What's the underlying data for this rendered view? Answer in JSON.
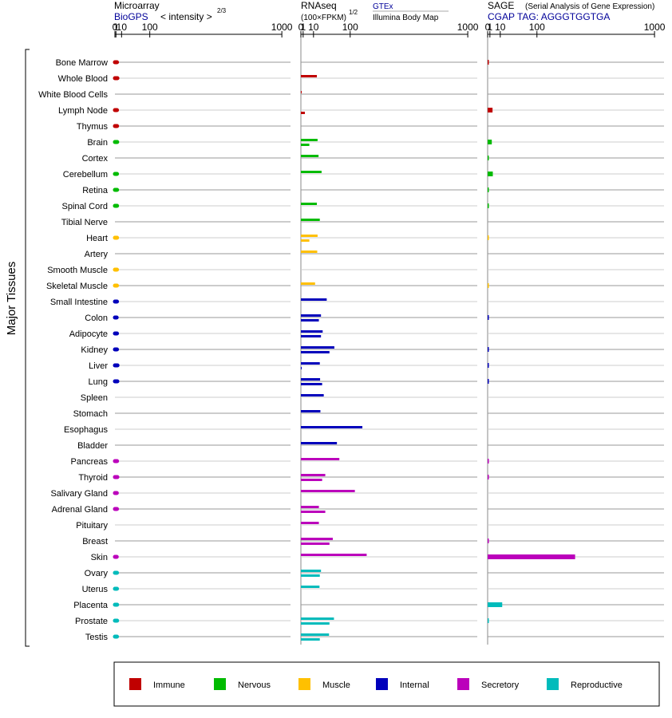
{
  "chart_data": {
    "type": "bar",
    "orientation": "horizontal",
    "axis_label": "Major Tissues",
    "tick_labels": [
      "0",
      "1",
      "10",
      "100",
      "1000"
    ],
    "tick_values": [
      0,
      1,
      10,
      100,
      1000
    ],
    "scale": "power 2/3 (microarray), power 1/2 (RNAseq, SAGE)",
    "panels": [
      {
        "title": "Microarray",
        "subtitle_link": "BioGPS",
        "subtitle_rest": "< intensity >",
        "exponent": "2/3",
        "range": [
          0,
          1000
        ]
      },
      {
        "title": "RNAseq",
        "subtitle_rest": "(100×FPKM)",
        "exponent": "1/2",
        "source_1": "GTEx",
        "source_2": "Illumina Body Map",
        "range": [
          0,
          1000
        ]
      },
      {
        "title": "SAGE",
        "title_note": "(Serial Analysis of Gene Expression)",
        "subtitle_link": "CGAP TAG: AGGGTGGTGA",
        "range": [
          0,
          1000
        ]
      }
    ],
    "categories": [
      "Immune",
      "Nervous",
      "Muscle",
      "Internal",
      "Secretory",
      "Reproductive"
    ],
    "category_colors": {
      "Immune": "#c00000",
      "Nervous": "#00bb00",
      "Muscle": "#ffc000",
      "Internal": "#0000bb",
      "Secretory": "#bb00bb",
      "Reproductive": "#00bbbb"
    },
    "tissues": [
      {
        "name": "Bone Marrow",
        "category": "Immune",
        "microarray": 2.3,
        "gtex": null,
        "ibm": null,
        "sage": 0.01
      },
      {
        "name": "Whole Blood",
        "category": "Immune",
        "microarray": 2.9,
        "gtex": 14.5,
        "ibm": null,
        "sage": null
      },
      {
        "name": "White Blood Cells",
        "category": "Immune",
        "microarray": null,
        "gtex": 0.02,
        "ibm": null,
        "sage": null
      },
      {
        "name": "Lymph Node",
        "category": "Immune",
        "microarray": 2.3,
        "gtex": null,
        "ibm": 2.0,
        "sage": 2.6
      },
      {
        "name": "Thymus",
        "category": "Immune",
        "microarray": 2.4,
        "gtex": null,
        "ibm": null,
        "sage": null
      },
      {
        "name": "Brain",
        "category": "Nervous",
        "microarray": 2.6,
        "gtex": 15.5,
        "ibm": 5.5,
        "sage": 2.1
      },
      {
        "name": "Cortex",
        "category": "Nervous",
        "microarray": null,
        "gtex": 17.0,
        "ibm": null,
        "sage": 0.01
      },
      {
        "name": "Cerebellum",
        "category": "Nervous",
        "microarray": 2.3,
        "gtex": 22.0,
        "ibm": null,
        "sage": 2.8
      },
      {
        "name": "Retina",
        "category": "Nervous",
        "microarray": 2.4,
        "gtex": null,
        "ibm": null,
        "sage": 0.01
      },
      {
        "name": "Spinal Cord",
        "category": "Nervous",
        "microarray": 2.4,
        "gtex": 14.5,
        "ibm": null,
        "sage": 0.01
      },
      {
        "name": "Tibial Nerve",
        "category": "Nervous",
        "microarray": null,
        "gtex": 19.0,
        "ibm": null,
        "sage": null
      },
      {
        "name": "Heart",
        "category": "Muscle",
        "microarray": 2.4,
        "gtex": 15.5,
        "ibm": 5.5,
        "sage": 0.005
      },
      {
        "name": "Artery",
        "category": "Muscle",
        "microarray": null,
        "gtex": 15.0,
        "ibm": null,
        "sage": null
      },
      {
        "name": "Smooth Muscle",
        "category": "Muscle",
        "microarray": 2.3,
        "gtex": null,
        "ibm": null,
        "sage": null
      },
      {
        "name": "Skeletal Muscle",
        "category": "Muscle",
        "microarray": 2.3,
        "gtex": 12.0,
        "ibm": null,
        "sage": 0.005
      },
      {
        "name": "Small Intestine",
        "category": "Internal",
        "microarray": 2.3,
        "gtex": 32.0,
        "ibm": null,
        "sage": null
      },
      {
        "name": "Colon",
        "category": "Internal",
        "microarray": 1.9,
        "gtex": 21.0,
        "ibm": 17.5,
        "sage": 0.01
      },
      {
        "name": "Adipocyte",
        "category": "Internal",
        "microarray": 2.3,
        "gtex": 24.0,
        "ibm": 21.0,
        "sage": null
      },
      {
        "name": "Kidney",
        "category": "Internal",
        "microarray": 2.3,
        "gtex": 50.0,
        "ibm": 38.0,
        "sage": 0.01
      },
      {
        "name": "Liver",
        "category": "Internal",
        "microarray": 3.0,
        "gtex": 19.0,
        "ibm": 0.02,
        "sage": 0.01
      },
      {
        "name": "Lung",
        "category": "Internal",
        "microarray": 2.8,
        "gtex": 19.5,
        "ibm": 23.0,
        "sage": 0.01
      },
      {
        "name": "Spleen",
        "category": "Internal",
        "microarray": null,
        "gtex": 26.0,
        "ibm": null,
        "sage": null
      },
      {
        "name": "Stomach",
        "category": "Internal",
        "microarray": null,
        "gtex": 20.0,
        "ibm": null,
        "sage": null
      },
      {
        "name": "Esophagus",
        "category": "Internal",
        "microarray": null,
        "gtex": 150.0,
        "ibm": null,
        "sage": null
      },
      {
        "name": "Bladder",
        "category": "Internal",
        "microarray": null,
        "gtex": 57.0,
        "ibm": null,
        "sage": null
      },
      {
        "name": "Pancreas",
        "category": "Secretory",
        "microarray": 2.4,
        "gtex": 64.0,
        "ibm": null,
        "sage": 0.01
      },
      {
        "name": "Thyroid",
        "category": "Secretory",
        "microarray": 2.8,
        "gtex": 29.0,
        "ibm": 23.0,
        "sage": 0.01
      },
      {
        "name": "Salivary Gland",
        "category": "Secretory",
        "microarray": 2.1,
        "gtex": 118.0,
        "ibm": null,
        "sage": null
      },
      {
        "name": "Adrenal Gland",
        "category": "Secretory",
        "microarray": 2.3,
        "gtex": 17.5,
        "ibm": 29.0,
        "sage": null
      },
      {
        "name": "Pituitary",
        "category": "Secretory",
        "microarray": null,
        "gtex": 17.5,
        "ibm": null,
        "sage": null
      },
      {
        "name": "Breast",
        "category": "Secretory",
        "microarray": null,
        "gtex": 46.0,
        "ibm": 38.0,
        "sage": 0.01
      },
      {
        "name": "Skin",
        "category": "Secretory",
        "microarray": 2.0,
        "gtex": 170.0,
        "ibm": null,
        "sage": 290.0
      },
      {
        "name": "Ovary",
        "category": "Reproductive",
        "microarray": 2.3,
        "gtex": 21.0,
        "ibm": 19.0,
        "sage": null
      },
      {
        "name": "Uterus",
        "category": "Reproductive",
        "microarray": 2.3,
        "gtex": 18.5,
        "ibm": null,
        "sage": null
      },
      {
        "name": "Placenta",
        "category": "Reproductive",
        "microarray": 2.5,
        "gtex": null,
        "ibm": null,
        "sage": 12.5
      },
      {
        "name": "Prostate",
        "category": "Reproductive",
        "microarray": 2.5,
        "gtex": 49.0,
        "ibm": 38.0,
        "sage": 0.01
      },
      {
        "name": "Testis",
        "category": "Reproductive",
        "microarray": 2.3,
        "gtex": 37.0,
        "ibm": 19.0,
        "sage": null
      }
    ]
  }
}
